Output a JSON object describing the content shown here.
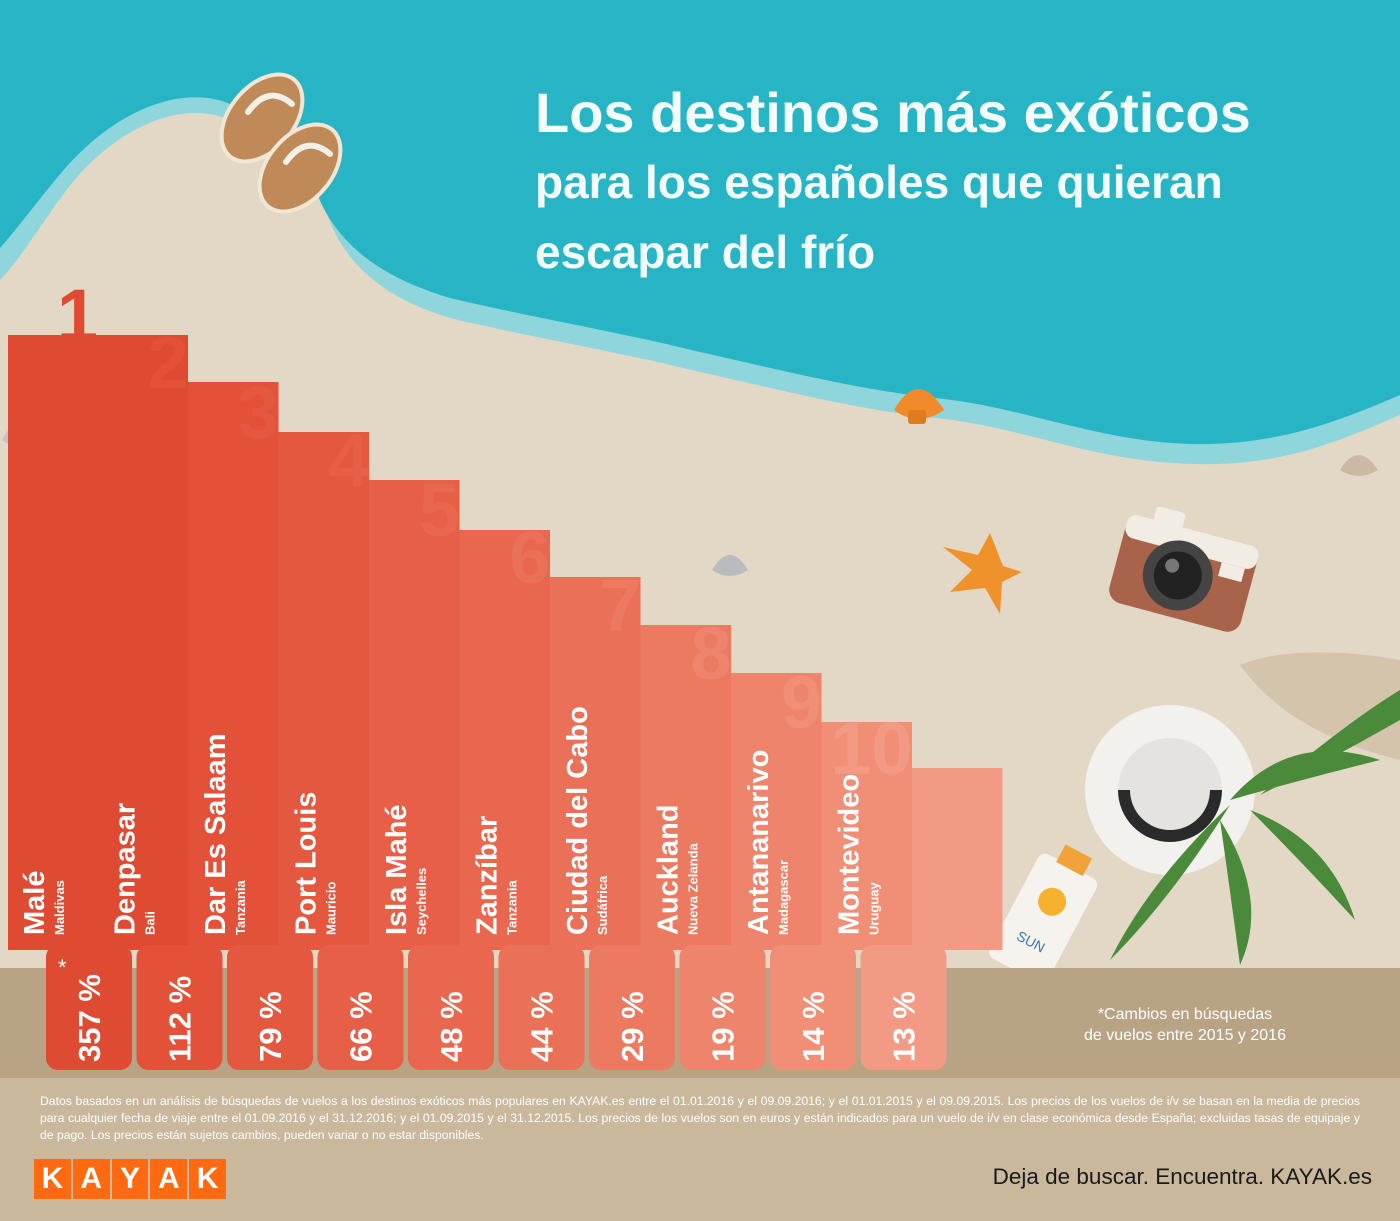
{
  "title": {
    "line1": "Los destinos más exóticos",
    "line2": "para los españoles que quieran",
    "line3": "escapar del frío"
  },
  "chart_data": {
    "type": "bar",
    "categories": [
      "Malé",
      "Denpasar",
      "Dar Es Salaam",
      "Port Louis",
      "Isla Mahé",
      "Zanzíbar",
      "Ciudad del Cabo",
      "Auckland",
      "Antananarivo",
      "Montevideo"
    ],
    "countries": [
      "Maldivas",
      "Bali",
      "Tanzania",
      "Mauricio",
      "Seychelles",
      "Tanzania",
      "Sudáfrica",
      "Nueva Zelanda",
      "Madagascar",
      "Uruguay"
    ],
    "ranks": [
      "1",
      "2",
      "3",
      "4",
      "5",
      "6",
      "7",
      "8",
      "9",
      "10"
    ],
    "values": [
      357,
      112,
      79,
      66,
      48,
      44,
      29,
      19,
      14,
      13
    ],
    "value_labels": [
      "357 %",
      "112 %",
      "79 %",
      "66 %",
      "48 %",
      "44 %",
      "29 %",
      "19 %",
      "14 %",
      "13 %"
    ],
    "asterisk": "*",
    "colors": [
      "#df4a32",
      "#e25138",
      "#e4583f",
      "#e65f46",
      "#e8674e",
      "#ea7057",
      "#ec7a61",
      "#ee846b",
      "#f08e76",
      "#f29a83"
    ]
  },
  "note": {
    "line1": "*Cambios en búsquedas",
    "line2": "de vuelos entre 2015 y 2016"
  },
  "footer": {
    "disclaimer": "Datos basados en un análisis de búsquedas de vuelos a los destinos exóticos más populares en KAYAK.es entre el 01.01.2016 y el 09.09.2016; y el 01.01.2015 y el 09.09.2015. Los precios de los vuelos de i/v se basan en la media de precios para cualquier fecha de viaje entre el 01.09.2016 y el 31.12.2016; y el 01.09.2015 y el 31.12.2015. Los precios de los vuelos son en euros y están indicados para un vuelo de i/v en clase económica desde España; excluidas tasas de equipaje y de pago. Los precios están sujetos cambios, pueden variar o no estar disponibles.",
    "logo_letters": [
      "K",
      "A",
      "Y",
      "A",
      "K"
    ],
    "tagline": "Deja de buscar. Encuentra. KAYAK.es"
  },
  "colors": {
    "sea": "#27b5c6",
    "foam": "#8fd6dc",
    "sand": "#e3d8c6",
    "band": "#b9a385",
    "footer": "#c9b89c",
    "title": "#f4fbfb",
    "logo": "#ff690f"
  }
}
